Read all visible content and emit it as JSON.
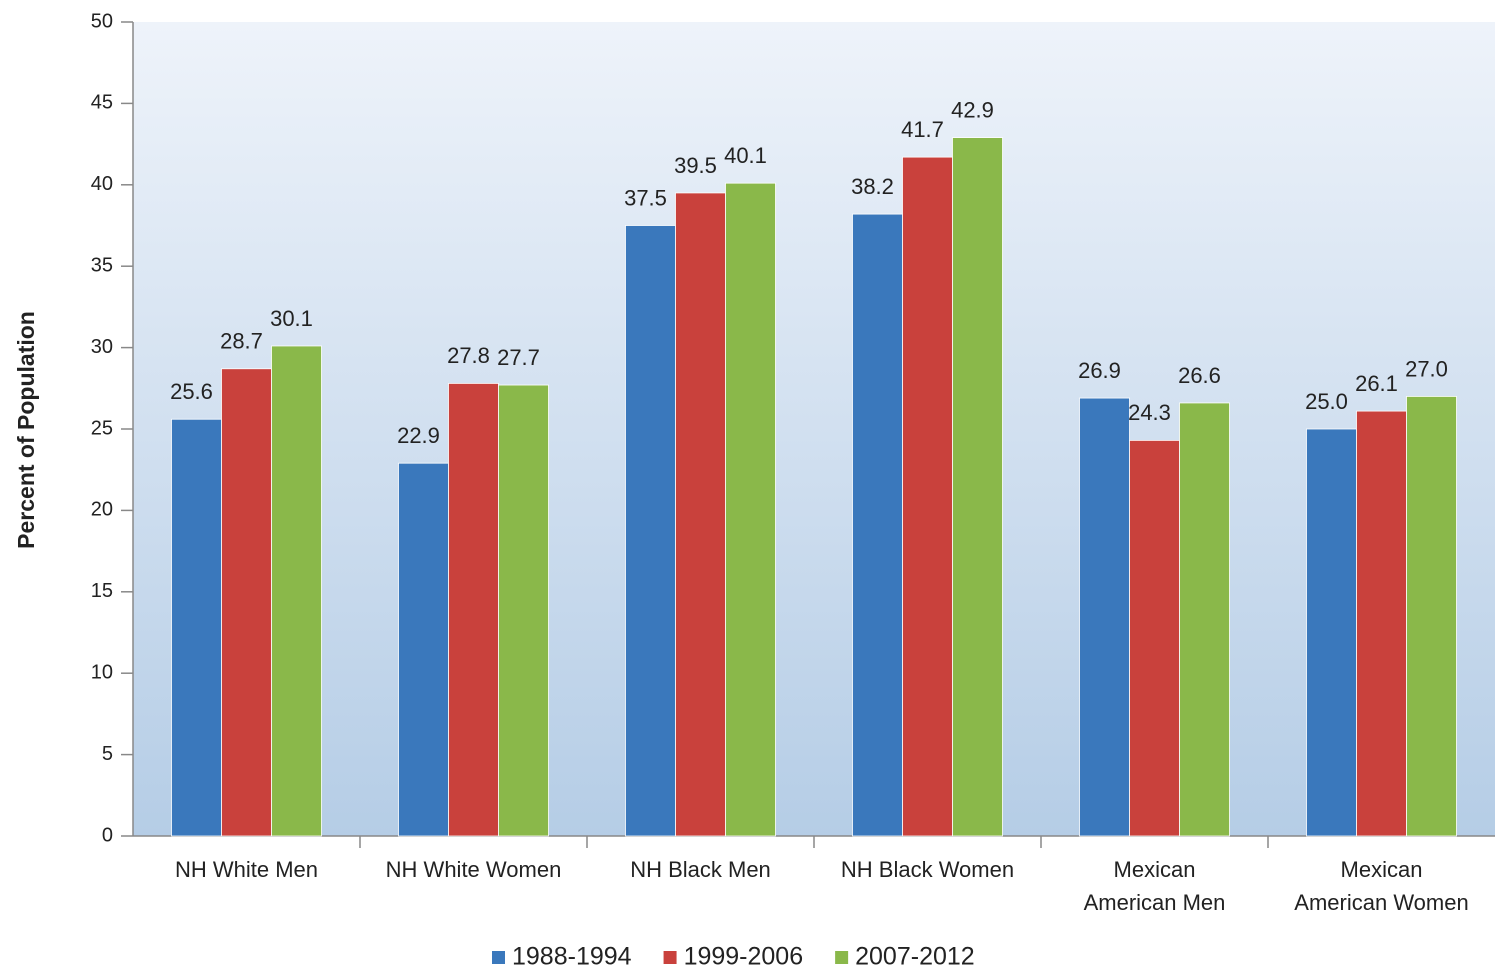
{
  "chart_data": {
    "type": "bar",
    "y_label": "Percent of Population",
    "categories": [
      "NH White Men",
      "NH White Women",
      "NH Black Men",
      "NH Black Women",
      "Mexican American Men",
      "Mexican American Women"
    ],
    "series": [
      {
        "name": "1988-1994",
        "color": "#3a78bc",
        "values": [
          25.6,
          22.9,
          37.5,
          38.2,
          26.9,
          25
        ],
        "value_labels": [
          "25.6",
          "22.9",
          "37.5",
          "38.2",
          "26.9",
          "25.0"
        ]
      },
      {
        "name": "1999-2006",
        "color": "#c9413c",
        "values": [
          28.7,
          27.8,
          39.5,
          41.7,
          24.3,
          26.1
        ],
        "value_labels": [
          "28.7",
          "27.8",
          "39.5",
          "41.7",
          "24.3",
          "26.1"
        ]
      },
      {
        "name": "2007-2012",
        "color": "#8ab84a",
        "values": [
          30.1,
          27.7,
          40.1,
          42.9,
          26.6,
          27
        ],
        "value_labels": [
          "30.1",
          "27.7",
          "40.1",
          "42.9",
          "26.6",
          "27.0"
        ]
      }
    ],
    "ylim": [
      0,
      50
    ],
    "yticks": [
      0,
      5,
      10,
      15,
      20,
      25,
      30,
      35,
      40,
      45,
      50
    ],
    "legend": "bottom"
  }
}
